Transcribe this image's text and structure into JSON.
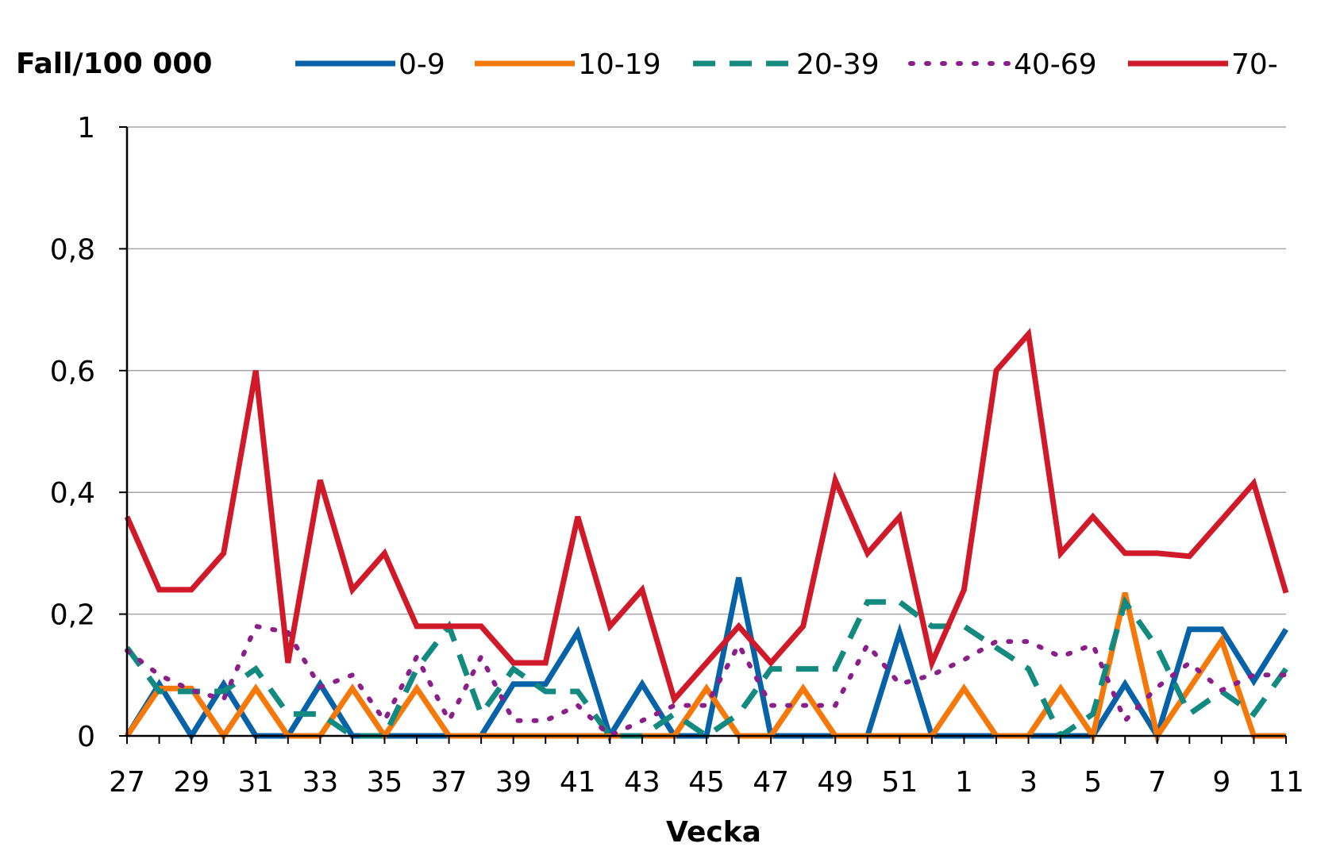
{
  "chart_data": {
    "type": "line",
    "ylabel": "Fall/100 000",
    "xlabel": "Vecka",
    "ylim": [
      0,
      1
    ],
    "yticks": [
      0,
      0.2,
      0.4,
      0.6,
      0.8,
      1
    ],
    "ytick_labels": [
      "0",
      "0,2",
      "0,4",
      "0,6",
      "0,8",
      "1"
    ],
    "grid": true,
    "legend": "top",
    "categories": [
      "27",
      "28",
      "29",
      "30",
      "31",
      "32",
      "33",
      "34",
      "35",
      "36",
      "37",
      "38",
      "39",
      "40",
      "41",
      "42",
      "43",
      "44",
      "45",
      "46",
      "47",
      "48",
      "49",
      "50",
      "51",
      "52",
      "1",
      "2",
      "3",
      "4",
      "5",
      "6",
      "7",
      "8",
      "9",
      "10",
      "11"
    ],
    "xtick_labels": [
      "27",
      "29",
      "31",
      "33",
      "35",
      "37",
      "39",
      "41",
      "43",
      "45",
      "47",
      "49",
      "51",
      "1",
      "3",
      "5",
      "7",
      "9",
      "11"
    ],
    "series": [
      {
        "name": "0-9",
        "color": "#0862a8",
        "dash": "solid",
        "values": [
          0,
          0.085,
          0,
          0.085,
          0,
          0,
          0.085,
          0,
          0,
          0,
          0,
          0,
          0.085,
          0.085,
          0.17,
          0,
          0.085,
          0,
          0,
          0.26,
          0,
          0,
          0,
          0,
          0.17,
          0,
          0,
          0,
          0,
          0,
          0,
          0.085,
          0,
          0.175,
          0.175,
          0.09,
          0.175
        ]
      },
      {
        "name": "10-19",
        "color": "#f5780a",
        "dash": "solid",
        "values": [
          0,
          0.078,
          0.078,
          0,
          0.078,
          0,
          0,
          0.078,
          0,
          0.078,
          0,
          0,
          0,
          0,
          0,
          0,
          0,
          0,
          0.078,
          0,
          0,
          0.078,
          0,
          0,
          0,
          0,
          0.078,
          0,
          0,
          0.078,
          0,
          0.235,
          0,
          0.078,
          0.157,
          0,
          0
        ]
      },
      {
        "name": "20-39",
        "color": "#138a7f",
        "dash": "dashed",
        "values": [
          0.145,
          0.073,
          0.073,
          0.073,
          0.11,
          0.036,
          0.036,
          0,
          0,
          0.11,
          0.18,
          0.036,
          0.11,
          0.073,
          0.073,
          0,
          0,
          0.036,
          0,
          0.036,
          0.11,
          0.11,
          0.11,
          0.22,
          0.22,
          0.18,
          0.18,
          0.145,
          0.11,
          0,
          0.036,
          0.22,
          0.145,
          0.036,
          0.073,
          0.036,
          0.11
        ]
      },
      {
        "name": "40-69",
        "color": "#8a1f8a",
        "dash": "dotted",
        "values": [
          0.14,
          0.1,
          0.075,
          0.06,
          0.18,
          0.17,
          0.08,
          0.1,
          0.025,
          0.13,
          0.025,
          0.13,
          0.025,
          0.025,
          0.05,
          0,
          0.025,
          0.05,
          0.05,
          0.15,
          0.05,
          0.05,
          0.05,
          0.15,
          0.085,
          0.1,
          0.125,
          0.155,
          0.155,
          0.13,
          0.15,
          0.025,
          0.08,
          0.12,
          0.075,
          0.1,
          0.1
        ]
      },
      {
        "name": "70-",
        "color": "#d01a2a",
        "dash": "solid",
        "values": [
          0.36,
          0.24,
          0.24,
          0.3,
          0.6,
          0.12,
          0.42,
          0.24,
          0.3,
          0.18,
          0.18,
          0.18,
          0.12,
          0.12,
          0.36,
          0.18,
          0.24,
          0.06,
          0.12,
          0.18,
          0.12,
          0.18,
          0.42,
          0.3,
          0.36,
          0.12,
          0.24,
          0.6,
          0.66,
          0.3,
          0.36,
          0.3,
          0.3,
          0.295,
          0.355,
          0.415,
          0.235
        ]
      }
    ]
  }
}
